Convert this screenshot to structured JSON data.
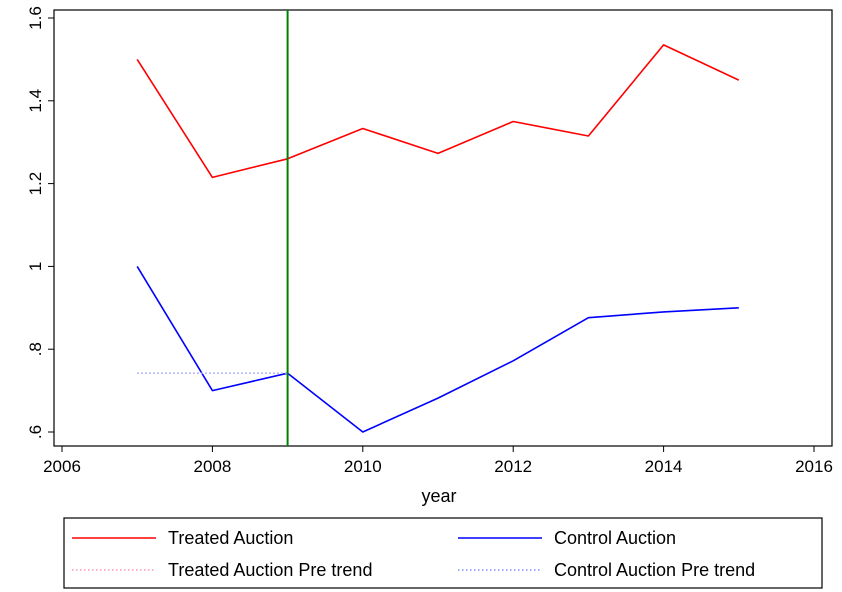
{
  "chart_data": {
    "type": "line",
    "title": "",
    "xlabel": "year",
    "ylabel": "",
    "xlim": [
      2006,
      2016
    ],
    "ylim": [
      0.6,
      1.6
    ],
    "xticks": [
      2006,
      2008,
      2010,
      2012,
      2014,
      2016
    ],
    "xtick_labels": [
      "2006",
      "2008",
      "2010",
      "2012",
      "2014",
      "2016"
    ],
    "yticks": [
      0.6,
      0.8,
      1.0,
      1.2,
      1.4,
      1.6
    ],
    "ytick_labels": [
      ".6",
      ".8",
      "1",
      "1.2",
      "1.4",
      "1.6"
    ],
    "grid": false,
    "vertical_line": {
      "x": 2009,
      "color": "#008000"
    },
    "legend_position": "bottom",
    "series": [
      {
        "name": "Treated Auction",
        "color": "#ff0000",
        "style": "solid",
        "x": [
          2007,
          2008,
          2009,
          2010,
          2011,
          2012,
          2013,
          2014,
          2015
        ],
        "y": [
          1.5,
          1.215,
          1.26,
          1.333,
          1.273,
          1.35,
          1.315,
          1.535,
          1.45
        ]
      },
      {
        "name": "Control Auction",
        "color": "#0000ff",
        "style": "solid",
        "x": [
          2007,
          2008,
          2009,
          2010,
          2011,
          2012,
          2013,
          2014,
          2015
        ],
        "y": [
          1.0,
          0.7,
          0.742,
          0.6,
          0.682,
          0.772,
          0.876,
          0.89,
          0.9
        ]
      },
      {
        "name": "Treated Auction Pre trend",
        "color": "#ffb0c8",
        "style": "dotted",
        "x": [],
        "y": []
      },
      {
        "name": "Control Auction Pre trend",
        "color": "#a0a8ff",
        "style": "dotted",
        "x": [
          2007,
          2009
        ],
        "y": [
          0.742,
          0.742
        ]
      }
    ]
  }
}
